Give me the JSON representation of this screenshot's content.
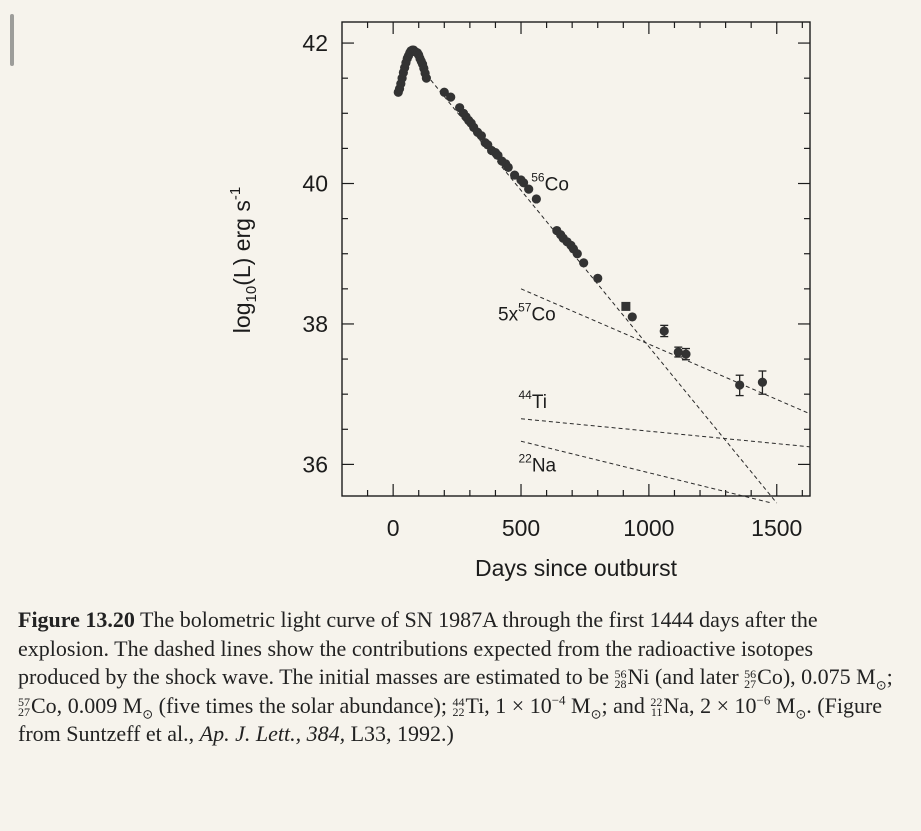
{
  "chart_data": {
    "type": "scatter",
    "title": "",
    "xlabel": "Days since outburst",
    "ylabel_parts": {
      "pre": "log",
      "sub": "10",
      "mid": "(L)  erg s",
      "sup": "-1"
    },
    "xlim": [
      -200,
      1630
    ],
    "ylim": [
      35.55,
      42.3
    ],
    "x_ticks": [
      "0",
      "500",
      "1000",
      "1500"
    ],
    "x_tick_values": [
      0,
      500,
      1000,
      1500
    ],
    "y_ticks": [
      "36",
      "38",
      "40",
      "42"
    ],
    "y_tick_values": [
      36,
      38,
      40,
      42
    ],
    "grid": false,
    "series": [
      {
        "points": [
          [
            20,
            41.3
          ],
          [
            25,
            41.35
          ],
          [
            30,
            41.42
          ],
          [
            35,
            41.5
          ],
          [
            40,
            41.58
          ],
          [
            45,
            41.65
          ],
          [
            50,
            41.72
          ],
          [
            55,
            41.78
          ],
          [
            60,
            41.82
          ],
          [
            65,
            41.86
          ],
          [
            70,
            41.89
          ],
          [
            75,
            41.9
          ],
          [
            80,
            41.9
          ],
          [
            85,
            41.88
          ],
          [
            90,
            41.87
          ],
          [
            95,
            41.86
          ],
          [
            100,
            41.83
          ],
          [
            105,
            41.78
          ],
          [
            110,
            41.74
          ],
          [
            115,
            41.7
          ],
          [
            120,
            41.64
          ],
          [
            125,
            41.57
          ],
          [
            130,
            41.5
          ],
          [
            200,
            41.3
          ],
          [
            225,
            41.23
          ],
          [
            260,
            41.08
          ],
          [
            275,
            41.0
          ],
          [
            285,
            40.95
          ],
          [
            295,
            40.9
          ],
          [
            305,
            40.86
          ],
          [
            315,
            40.8
          ],
          [
            330,
            40.73
          ],
          [
            345,
            40.68
          ],
          [
            360,
            40.58
          ],
          [
            370,
            40.55
          ],
          [
            385,
            40.47
          ],
          [
            400,
            40.44
          ],
          [
            410,
            40.4
          ],
          [
            425,
            40.32
          ],
          [
            440,
            40.28
          ],
          [
            450,
            40.23
          ],
          [
            475,
            40.12
          ],
          [
            500,
            40.05
          ],
          [
            510,
            40.01
          ],
          [
            530,
            39.92
          ],
          [
            560,
            39.78
          ],
          [
            640,
            39.33
          ],
          [
            655,
            39.27
          ],
          [
            665,
            39.22
          ],
          [
            680,
            39.17
          ],
          [
            695,
            39.12
          ],
          [
            705,
            39.07
          ],
          [
            720,
            39.0
          ],
          [
            745,
            38.87
          ],
          [
            800,
            38.65
          ],
          [
            935,
            38.1
          ],
          [
            1060,
            37.9
          ],
          [
            1115,
            37.6
          ],
          [
            1145,
            37.57
          ],
          [
            1355,
            37.13
          ],
          [
            1444,
            37.17
          ]
        ]
      },
      {
        "points": [
          [
            910,
            38.25
          ]
        ]
      }
    ],
    "error_bars": [
      {
        "x": 1060,
        "lo": 37.82,
        "hi": 37.98
      },
      {
        "x": 1115,
        "lo": 37.53,
        "hi": 37.67
      },
      {
        "x": 1145,
        "lo": 37.49,
        "hi": 37.65
      },
      {
        "x": 1355,
        "lo": 36.98,
        "hi": 37.27
      },
      {
        "x": 1444,
        "lo": 37.0,
        "hi": 37.33
      }
    ],
    "model_lines": [
      {
        "name": "56Co",
        "points": [
          [
            130,
            41.55
          ],
          [
            1500,
            35.45
          ]
        ]
      },
      {
        "name": "57Co",
        "points": [
          [
            500,
            38.5
          ],
          [
            1630,
            36.72
          ]
        ]
      },
      {
        "name": "44Ti",
        "points": [
          [
            500,
            36.65
          ],
          [
            1630,
            36.25
          ]
        ]
      },
      {
        "name": "22Na",
        "points": [
          [
            500,
            36.33
          ],
          [
            1480,
            35.45
          ]
        ]
      }
    ],
    "annotations": [
      {
        "id": "co56",
        "base": "Co",
        "sup": "56",
        "pre": "",
        "x": 540,
        "y": 39.9
      },
      {
        "id": "co57",
        "base": "Co",
        "sup": "57",
        "pre": "5x",
        "x": 410,
        "y": 38.05
      },
      {
        "id": "ti44",
        "base": "Ti",
        "sup": "44",
        "pre": "",
        "x": 490,
        "y": 36.8
      },
      {
        "id": "na22",
        "base": "Na",
        "sup": "22",
        "pre": "",
        "x": 490,
        "y": 35.9
      }
    ],
    "colors": {
      "marker": "#333333",
      "axis": "#1c1c1c",
      "dashed": "#2a2a2a"
    }
  },
  "caption": {
    "figure_label": "Figure 13.20",
    "text_1": "The bolometric light curve of SN 1987A through the first 1444 days after the explosion. The dashed lines show the contributions expected from the radioactive isotopes produced by the shock wave. The initial masses are estimated to be",
    "ni_sup": "56",
    "ni_sub": "28",
    "ni_sym": "Ni",
    "text_2": "(and later",
    "co56_sup": "56",
    "co56_sub": "27",
    "co56_sym": "Co",
    "text_3": "), 0.075 M",
    "text_4": ";",
    "co57_sup": "57",
    "co57_sub": "27",
    "co57_sym": "Co,",
    "text_5": "0.009 M",
    "text_6": "(five times the solar abundance);",
    "ti_sup": "44",
    "ti_sub": "22",
    "ti_sym": "Ti,",
    "text_7": "1 × 10",
    "exp_7": "−4",
    "text_8": "M",
    "text_9": "; and",
    "na_sup": "22",
    "na_sub": "11",
    "na_sym": "Na,",
    "text_10": "2 × 10",
    "exp_10": "−6",
    "text_11": "M",
    "text_12": ". (Figure from Suntzeff et al.,",
    "journal": "Ap. J. Lett.,",
    "volume": "384,",
    "text_13": "L33, 1992.)",
    "sun_symbol": "⊙"
  }
}
